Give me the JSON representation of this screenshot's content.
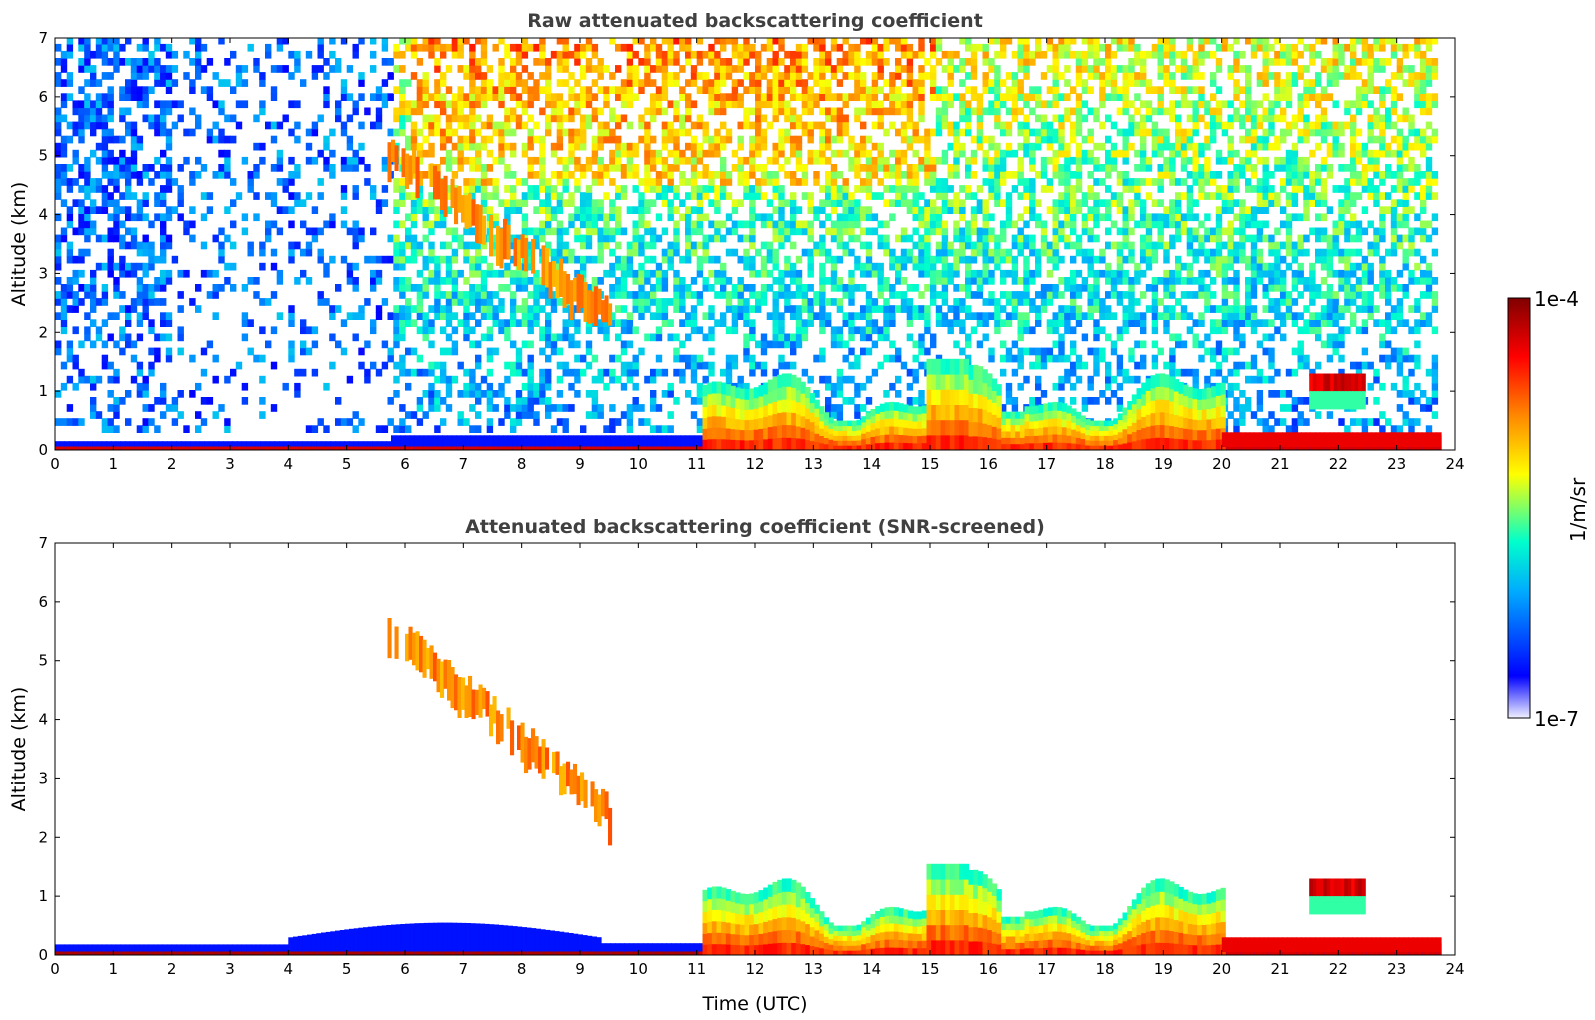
{
  "chart_data": [
    {
      "type": "heatmap",
      "title": "Raw attenuated backscattering coefficient",
      "xlabel": "",
      "ylabel": "Altitude (km)",
      "xlim": [
        0,
        24
      ],
      "ylim": [
        0,
        7
      ],
      "xticks": [
        "0",
        "1",
        "2",
        "3",
        "4",
        "5",
        "6",
        "7",
        "8",
        "9",
        "10",
        "11",
        "12",
        "13",
        "14",
        "15",
        "16",
        "17",
        "18",
        "19",
        "20",
        "21",
        "22",
        "23",
        "24"
      ],
      "yticks": [
        "0",
        "1",
        "2",
        "3",
        "4",
        "5",
        "6",
        "7"
      ],
      "features": [
        {
          "name": "boundary layer",
          "x": [
            0,
            23.7
          ],
          "y": [
            0,
            0.3
          ]
        },
        {
          "name": "descending cirrus band",
          "x": [
            5.7,
            9.5
          ],
          "y_top": [
            5.3,
            2.5
          ]
        },
        {
          "name": "convective layer",
          "x": [
            11.1,
            20.0
          ],
          "y": [
            0,
            1.6
          ]
        },
        {
          "name": "elevated cloud",
          "x": [
            21.5,
            22.4
          ],
          "y": [
            0.8,
            1.4
          ]
        }
      ]
    },
    {
      "type": "heatmap",
      "title": "Attenuated backscattering coefficient (SNR-screened)",
      "xlabel": "Time (UTC)",
      "ylabel": "Altitude (km)",
      "xlim": [
        0,
        24
      ],
      "ylim": [
        0,
        7
      ],
      "xticks": [
        "0",
        "1",
        "2",
        "3",
        "4",
        "5",
        "6",
        "7",
        "8",
        "9",
        "10",
        "11",
        "12",
        "13",
        "14",
        "15",
        "16",
        "17",
        "18",
        "19",
        "20",
        "21",
        "22",
        "23",
        "24"
      ],
      "yticks": [
        "0",
        "1",
        "2",
        "3",
        "4",
        "5",
        "6",
        "7"
      ],
      "features": [
        {
          "name": "boundary layer",
          "x": [
            0,
            23.7
          ],
          "y": [
            0,
            0.6
          ]
        },
        {
          "name": "descending cirrus band",
          "x": [
            5.7,
            9.5
          ],
          "y_top": [
            5.8,
            2.6
          ]
        },
        {
          "name": "convective layer",
          "x": [
            11.1,
            20.0
          ],
          "y": [
            0,
            1.6
          ]
        },
        {
          "name": "elevated cloud",
          "x": [
            21.5,
            22.4
          ],
          "y": [
            0.8,
            1.4
          ]
        }
      ]
    }
  ],
  "colorbar": {
    "label": "1/m/sr",
    "max_label": "1e-4",
    "min_label": "1e-7",
    "colors": [
      "#e6e6ff",
      "#0000ff",
      "#00aaff",
      "#00ffcc",
      "#ffff00",
      "#ff8800",
      "#ff0000",
      "#800000"
    ]
  }
}
